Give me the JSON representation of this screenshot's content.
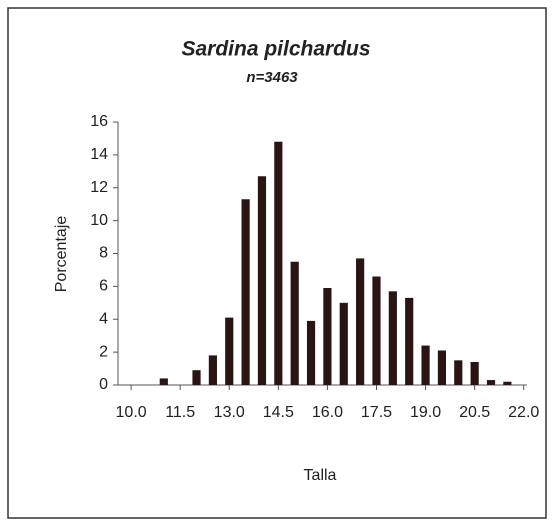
{
  "chart_data": {
    "type": "bar",
    "title": "Sardina pilchardus",
    "subtitle": "n=3463",
    "x_label": "Talla",
    "y_label": "Porcentaje",
    "x": [
      11.0,
      11.5,
      12.0,
      12.5,
      13.0,
      13.5,
      14.0,
      14.5,
      15.0,
      15.5,
      16.0,
      16.5,
      17.0,
      17.5,
      18.0,
      18.5,
      19.0,
      19.5,
      20.0,
      20.5,
      21.0,
      21.5
    ],
    "values": [
      0.4,
      0,
      0.9,
      1.8,
      4.1,
      11.3,
      12.7,
      14.8,
      7.5,
      3.9,
      5.9,
      5.0,
      7.7,
      6.6,
      5.7,
      5.3,
      2.4,
      2.1,
      1.5,
      1.4,
      0.3,
      0.2
    ],
    "color": "#2a1414",
    "xlim": [
      9.6,
      22.1
    ],
    "xticks": [
      {
        "value": 10,
        "label": "10.0"
      },
      {
        "value": 11.5,
        "label": "11.5"
      },
      {
        "value": 13,
        "label": "13.0"
      },
      {
        "value": 14.5,
        "label": "14.5"
      },
      {
        "value": 16,
        "label": "16.0"
      },
      {
        "value": 17.5,
        "label": "17.5"
      },
      {
        "value": 19,
        "label": "19.0"
      },
      {
        "value": 20.5,
        "label": "20.5"
      },
      {
        "value": 22,
        "label": "22.0"
      }
    ],
    "ylim": [
      0,
      16
    ],
    "yticks": [
      0,
      2,
      4,
      6,
      8,
      10,
      12,
      14,
      16
    ],
    "grid": false
  }
}
